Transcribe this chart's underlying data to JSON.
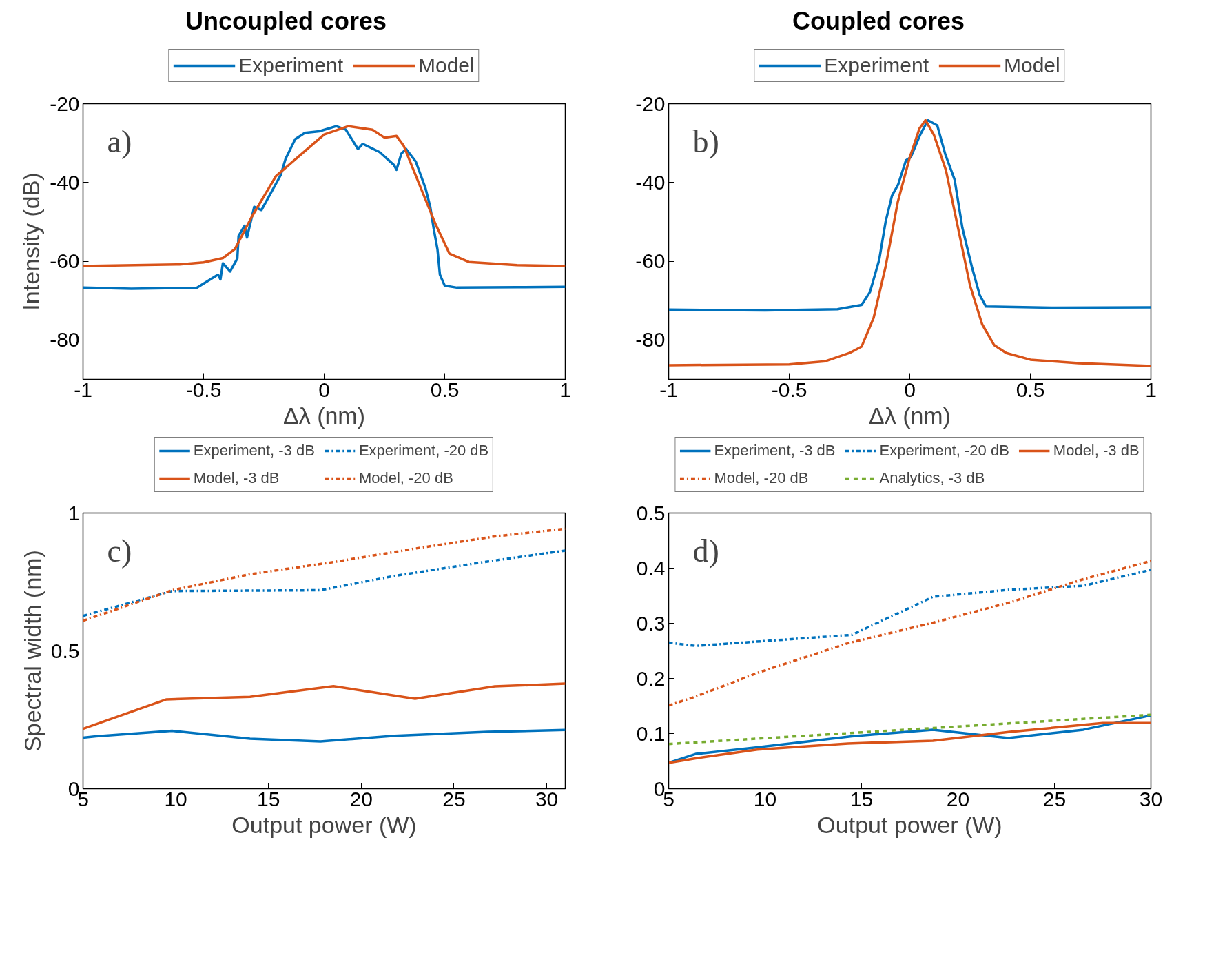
{
  "chart_data": [
    {
      "type": "line",
      "title": "Uncoupled cores",
      "xlabel": "Δλ (nm)",
      "ylabel": "Intensity (dB)",
      "annotations": [
        "a)"
      ],
      "xlim": [
        -1,
        1
      ],
      "ylim": [
        -90,
        -20
      ],
      "xticks": [
        -1,
        -0.5,
        0,
        0.5,
        1
      ],
      "yticks": [
        -80,
        -60,
        -40,
        -20
      ],
      "grid": false,
      "legend": "top",
      "series": [
        {
          "name": "Experiment",
          "color": "#0072bd",
          "line_style": "solid",
          "x": [
            -1,
            -0.8,
            -0.6,
            -0.53,
            -0.44,
            -0.43,
            -0.42,
            -0.39,
            -0.36,
            -0.355,
            -0.33,
            -0.32,
            -0.29,
            -0.26,
            -0.18,
            -0.16,
            -0.12,
            -0.08,
            -0.02,
            0.05,
            0.09,
            0.14,
            0.16,
            0.23,
            0.29,
            0.3,
            0.32,
            0.34,
            0.38,
            0.42,
            0.44,
            0.455,
            0.47,
            0.48,
            0.5,
            0.55,
            0.8,
            1
          ],
          "values": [
            -66.7,
            -67,
            -66.8,
            -66.8,
            -63.4,
            -64.6,
            -60.5,
            -62.6,
            -59.3,
            -53.6,
            -51,
            -54,
            -46.2,
            -47,
            -38.1,
            -34,
            -29,
            -27.4,
            -27,
            -25.7,
            -26.6,
            -31.5,
            -30.2,
            -32.3,
            -35.6,
            -36.8,
            -32.7,
            -31.5,
            -34.7,
            -41.4,
            -46.2,
            -52,
            -57,
            -63.4,
            -66.2,
            -66.7,
            -66.6,
            -66.5
          ]
        },
        {
          "name": "Model",
          "color": "#d95319",
          "line_style": "solid",
          "x": [
            -1,
            -0.6,
            -0.5,
            -0.42,
            -0.37,
            -0.3,
            -0.2,
            -0.1,
            0,
            0.1,
            0.2,
            0.25,
            0.3,
            0.33,
            0.4,
            0.46,
            0.52,
            0.6,
            0.8,
            1
          ],
          "values": [
            -61.2,
            -60.8,
            -60.3,
            -59.2,
            -56.9,
            -48.7,
            -38.4,
            -33.1,
            -27.8,
            -25.7,
            -26.6,
            -28.6,
            -28.2,
            -30.7,
            -41.3,
            -50.3,
            -58.1,
            -60.2,
            -61,
            -61.2
          ]
        }
      ]
    },
    {
      "type": "line",
      "title": "Coupled cores",
      "xlabel": "Δλ (nm)",
      "annotations": [
        "b)"
      ],
      "xlim": [
        -1,
        1
      ],
      "ylim": [
        -90,
        -20
      ],
      "xticks": [
        -1,
        -0.5,
        0,
        0.5,
        1
      ],
      "yticks": [
        -80,
        -60,
        -40,
        -20
      ],
      "grid": false,
      "legend": "top",
      "series": [
        {
          "name": "Experiment",
          "color": "#0072bd",
          "line_style": "solid",
          "x": [
            -1,
            -0.6,
            -0.3,
            -0.2,
            -0.165,
            -0.127,
            -0.1,
            -0.074,
            -0.048,
            -0.016,
            0.004,
            0.043,
            0.075,
            0.114,
            0.147,
            0.186,
            0.218,
            0.257,
            0.29,
            0.316,
            0.6,
            1
          ],
          "values": [
            -72.3,
            -72.5,
            -72.2,
            -71.1,
            -67.8,
            -59.7,
            -49.9,
            -43.4,
            -40.5,
            -34.4,
            -33.6,
            -27.9,
            -24.2,
            -25.5,
            -32.8,
            -39.3,
            -51.5,
            -61.3,
            -68.6,
            -71.5,
            -71.8,
            -71.7
          ]
        },
        {
          "name": "Model",
          "color": "#d95319",
          "line_style": "solid",
          "x": [
            -1,
            -0.5,
            -0.35,
            -0.25,
            -0.2,
            -0.15,
            -0.1,
            -0.05,
            0,
            0.04,
            0.065,
            0.1,
            0.15,
            0.2,
            0.25,
            0.3,
            0.35,
            0.4,
            0.5,
            0.7,
            1
          ],
          "values": [
            -86.4,
            -86.2,
            -85.4,
            -83.3,
            -81.7,
            -74.4,
            -61.3,
            -45,
            -33.6,
            -26.3,
            -24.2,
            -27.9,
            -36.9,
            -51.5,
            -66.2,
            -76,
            -81.3,
            -83.3,
            -85,
            -85.9,
            -86.6
          ]
        }
      ]
    },
    {
      "type": "line",
      "xlabel": "Output power (W)",
      "ylabel": "Spectral width (nm)",
      "annotations": [
        "c)"
      ],
      "xlim": [
        5,
        31
      ],
      "ylim": [
        0,
        1
      ],
      "xticks": [
        5,
        10,
        15,
        20,
        25,
        30
      ],
      "yticks": [
        0,
        0.5,
        1
      ],
      "grid": false,
      "legend": "top",
      "series": [
        {
          "name": "Experiment, -3 dB",
          "color": "#0072bd",
          "line_style": "solid",
          "x": [
            5,
            5.7,
            9.8,
            14,
            17.8,
            21.8,
            26.8,
            31
          ],
          "values": [
            0.185,
            0.19,
            0.21,
            0.181,
            0.171,
            0.192,
            0.206,
            0.213
          ]
        },
        {
          "name": "Experiment, -20 dB",
          "color": "#0072bd",
          "line_style": "dashdot",
          "x": [
            5,
            9.8,
            17.8,
            21.8,
            26.8,
            31
          ],
          "values": [
            0.627,
            0.717,
            0.72,
            0.772,
            0.824,
            0.864
          ]
        },
        {
          "name": "Model, -3 dB",
          "color": "#d95319",
          "line_style": "solid",
          "x": [
            5,
            9.5,
            14,
            18.5,
            22.9,
            27.2,
            31
          ],
          "values": [
            0.217,
            0.324,
            0.333,
            0.372,
            0.326,
            0.371,
            0.381
          ]
        },
        {
          "name": "Model, -20 dB",
          "color": "#d95319",
          "line_style": "dashdot",
          "x": [
            5,
            9.8,
            14,
            18.5,
            22.9,
            27.2,
            31
          ],
          "values": [
            0.609,
            0.72,
            0.778,
            0.822,
            0.871,
            0.915,
            0.943
          ]
        }
      ]
    },
    {
      "type": "line",
      "xlabel": "Output power (W)",
      "annotations": [
        "d)"
      ],
      "xlim": [
        5,
        30
      ],
      "ylim": [
        0,
        0.5
      ],
      "xticks": [
        5,
        10,
        15,
        20,
        25,
        30
      ],
      "yticks": [
        0,
        0.1,
        0.2,
        0.3,
        0.4,
        0.5
      ],
      "grid": false,
      "legend": "top",
      "series": [
        {
          "name": "Experiment, -3 dB",
          "color": "#0072bd",
          "line_style": "solid",
          "x": [
            5,
            6.4,
            9.6,
            14.5,
            18.7,
            22.6,
            26.5,
            30
          ],
          "values": [
            0.047,
            0.063,
            0.075,
            0.095,
            0.107,
            0.092,
            0.107,
            0.133
          ]
        },
        {
          "name": "Experiment, -20 dB",
          "color": "#0072bd",
          "line_style": "dashdot",
          "x": [
            5,
            6.4,
            14.5,
            18.7,
            22.7,
            26.5,
            30
          ],
          "values": [
            0.265,
            0.259,
            0.279,
            0.348,
            0.361,
            0.368,
            0.397
          ]
        },
        {
          "name": "Model, -3 dB",
          "color": "#d95319",
          "line_style": "solid",
          "x": [
            5,
            6.4,
            9.6,
            14.3,
            18.7,
            22.7,
            27.5,
            30
          ],
          "values": [
            0.047,
            0.055,
            0.071,
            0.082,
            0.087,
            0.103,
            0.119,
            0.119
          ]
        },
        {
          "name": "Model, -20 dB",
          "color": "#d95319",
          "line_style": "dashdot",
          "x": [
            5,
            6.4,
            9.6,
            14.3,
            18.7,
            22.7,
            26.5,
            30
          ],
          "values": [
            0.151,
            0.167,
            0.21,
            0.264,
            0.301,
            0.338,
            0.38,
            0.413
          ]
        },
        {
          "name": "Analytics, -3 dB",
          "color": "#77ac30",
          "line_style": "dashed",
          "x": [
            5,
            18.7,
            30
          ],
          "values": [
            0.081,
            0.11,
            0.134
          ]
        }
      ]
    }
  ]
}
